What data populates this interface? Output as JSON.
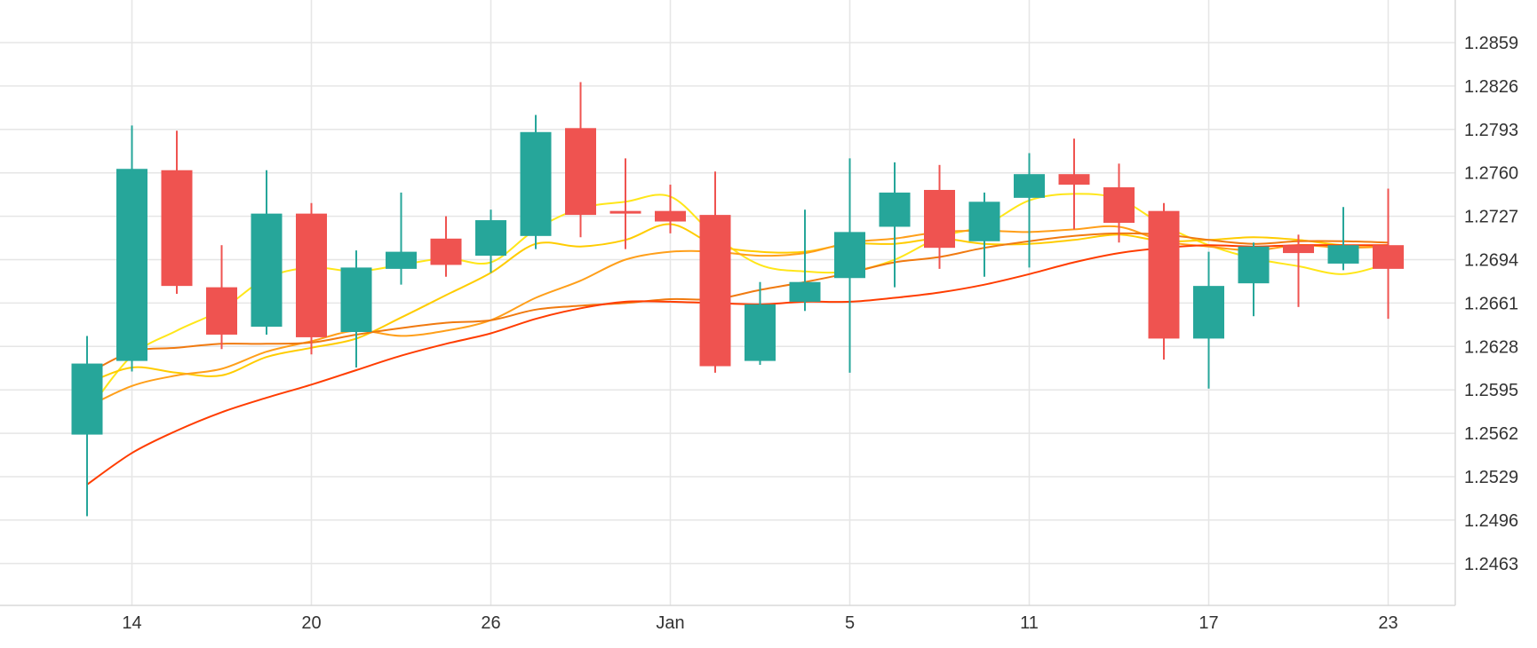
{
  "chart_data": {
    "type": "candlestick",
    "title": "",
    "xlabel": "",
    "ylabel": "",
    "grid": true,
    "colors": {
      "up": "#26a69a",
      "down": "#ef5350"
    },
    "y_range": [
      1.243,
      1.2892
    ],
    "y_ticks": [
      "1.2859",
      "1.2826",
      "1.2793",
      "1.2760",
      "1.2727",
      "1.2694",
      "1.2661",
      "1.2628",
      "1.2595",
      "1.2562",
      "1.2529",
      "1.2496",
      "1.2463"
    ],
    "x_ticks": [
      {
        "label": "14",
        "index": 1
      },
      {
        "label": "20",
        "index": 5
      },
      {
        "label": "26",
        "index": 9
      },
      {
        "label": "Jan",
        "index": 13
      },
      {
        "label": "5",
        "index": 17
      },
      {
        "label": "11",
        "index": 21
      },
      {
        "label": "17",
        "index": 25
      },
      {
        "label": "23",
        "index": 29
      }
    ],
    "candles": [
      {
        "o": 1.2561,
        "h": 1.2636,
        "l": 1.2499,
        "c": 1.2615
      },
      {
        "o": 1.2617,
        "h": 1.2796,
        "l": 1.2609,
        "c": 1.2763
      },
      {
        "o": 1.2762,
        "h": 1.2792,
        "l": 1.2668,
        "c": 1.2674
      },
      {
        "o": 1.2673,
        "h": 1.2705,
        "l": 1.2626,
        "c": 1.2637
      },
      {
        "o": 1.2643,
        "h": 1.2762,
        "l": 1.2637,
        "c": 1.2729
      },
      {
        "o": 1.2729,
        "h": 1.2737,
        "l": 1.2622,
        "c": 1.2635
      },
      {
        "o": 1.2639,
        "h": 1.2701,
        "l": 1.2612,
        "c": 1.2688
      },
      {
        "o": 1.2687,
        "h": 1.2745,
        "l": 1.2675,
        "c": 1.27
      },
      {
        "o": 1.271,
        "h": 1.2727,
        "l": 1.2681,
        "c": 1.269
      },
      {
        "o": 1.2697,
        "h": 1.2732,
        "l": 1.2684,
        "c": 1.2724
      },
      {
        "o": 1.2712,
        "h": 1.2804,
        "l": 1.2702,
        "c": 1.2791
      },
      {
        "o": 1.2794,
        "h": 1.2829,
        "l": 1.2711,
        "c": 1.2728
      },
      {
        "o": 1.2731,
        "h": 1.2771,
        "l": 1.2702,
        "c": 1.2729
      },
      {
        "o": 1.2731,
        "h": 1.2751,
        "l": 1.2714,
        "c": 1.2723
      },
      {
        "o": 1.2728,
        "h": 1.2761,
        "l": 1.2608,
        "c": 1.2613
      },
      {
        "o": 1.2617,
        "h": 1.2677,
        "l": 1.2614,
        "c": 1.266
      },
      {
        "o": 1.2662,
        "h": 1.2732,
        "l": 1.2655,
        "c": 1.2677
      },
      {
        "o": 1.268,
        "h": 1.2771,
        "l": 1.2608,
        "c": 1.2715
      },
      {
        "o": 1.2719,
        "h": 1.2768,
        "l": 1.2673,
        "c": 1.2745
      },
      {
        "o": 1.2747,
        "h": 1.2766,
        "l": 1.2687,
        "c": 1.2703
      },
      {
        "o": 1.2708,
        "h": 1.2745,
        "l": 1.2681,
        "c": 1.2738
      },
      {
        "o": 1.2741,
        "h": 1.2775,
        "l": 1.2688,
        "c": 1.2759
      },
      {
        "o": 1.2759,
        "h": 1.2786,
        "l": 1.2717,
        "c": 1.2751
      },
      {
        "o": 1.2749,
        "h": 1.2767,
        "l": 1.2707,
        "c": 1.2722
      },
      {
        "o": 1.2731,
        "h": 1.2737,
        "l": 1.2618,
        "c": 1.2634
      },
      {
        "o": 1.2634,
        "h": 1.27,
        "l": 1.2596,
        "c": 1.2674
      },
      {
        "o": 1.2676,
        "h": 1.2707,
        "l": 1.2651,
        "c": 1.2704
      },
      {
        "o": 1.2705,
        "h": 1.2713,
        "l": 1.2658,
        "c": 1.2699
      },
      {
        "o": 1.2691,
        "h": 1.2734,
        "l": 1.2686,
        "c": 1.2705
      },
      {
        "o": 1.2705,
        "h": 1.2748,
        "l": 1.2649,
        "c": 1.2687
      }
    ],
    "series": [
      {
        "color": "#ffe619",
        "values": [
          1.2578,
          1.2621,
          1.264,
          1.2656,
          1.268,
          1.2688,
          1.2685,
          1.269,
          1.2695,
          1.2692,
          1.2717,
          1.2733,
          1.2738,
          1.2742,
          1.2712,
          1.269,
          1.2685,
          1.2685,
          1.2694,
          1.2711,
          1.272,
          1.2739,
          1.2744,
          1.274,
          1.272,
          1.2705,
          1.2695,
          1.2689,
          1.2683,
          1.2691
        ]
      },
      {
        "color": "#ffcc00",
        "values": [
          1.26,
          1.2612,
          1.2608,
          1.2606,
          1.262,
          1.2627,
          1.2634,
          1.265,
          1.2667,
          1.2684,
          1.2706,
          1.2704,
          1.2709,
          1.2721,
          1.2705,
          1.27,
          1.27,
          1.2706,
          1.2706,
          1.271,
          1.2706,
          1.2706,
          1.2709,
          1.2713,
          1.2708,
          1.2709,
          1.2711,
          1.2709,
          1.2705,
          1.2705
        ]
      },
      {
        "color": "#ff9f1a",
        "values": [
          1.2582,
          1.2598,
          1.2606,
          1.2611,
          1.2624,
          1.2632,
          1.264,
          1.2636,
          1.264,
          1.2648,
          1.2665,
          1.2678,
          1.2694,
          1.27,
          1.27,
          1.2697,
          1.2699,
          1.2707,
          1.271,
          1.2715,
          1.2716,
          1.2715,
          1.2717,
          1.2719,
          1.2708,
          1.2704,
          1.2701,
          1.2705,
          1.2703,
          1.2704
        ]
      },
      {
        "color": "#f07a10",
        "values": [
          1.2607,
          1.2624,
          1.2627,
          1.263,
          1.263,
          1.2631,
          1.2637,
          1.2642,
          1.2646,
          1.2648,
          1.2656,
          1.2659,
          1.2661,
          1.2664,
          1.2664,
          1.2671,
          1.2677,
          1.2684,
          1.2692,
          1.2696,
          1.2703,
          1.2708,
          1.2712,
          1.2714,
          1.2713,
          1.2709,
          1.2706,
          1.2708,
          1.2708,
          1.2707
        ]
      },
      {
        "color": "#ff3d00",
        "values": [
          1.2523,
          1.2547,
          1.2564,
          1.2578,
          1.2589,
          1.2599,
          1.261,
          1.2621,
          1.263,
          1.2638,
          1.2649,
          1.2657,
          1.2662,
          1.2662,
          1.2661,
          1.266,
          1.2662,
          1.2662,
          1.2665,
          1.2669,
          1.2675,
          1.2683,
          1.2692,
          1.2699,
          1.2703,
          1.2705,
          1.2704,
          1.2705,
          1.2705,
          1.2705
        ]
      }
    ]
  }
}
